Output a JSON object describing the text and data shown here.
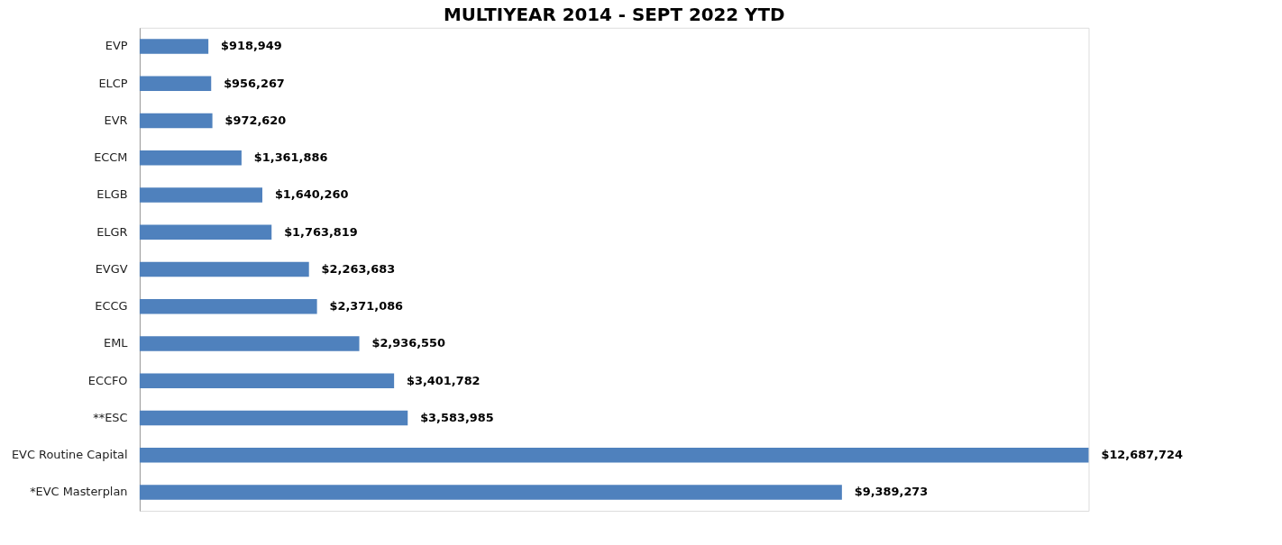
{
  "chart_data": {
    "type": "bar",
    "orientation": "horizontal",
    "title": "MULTIYEAR 2014 - SEPT 2022 YTD",
    "categories": [
      "EVP",
      "ELCP",
      "EVR",
      "ECCM",
      "ELGB",
      "ELGR",
      "EVGV",
      "ECCG",
      "EML",
      "ECCFO",
      "**ESC",
      "EVC Routine Capital",
      "*EVC Masterplan"
    ],
    "values": [
      918949,
      956267,
      972620,
      1361886,
      1640260,
      1763819,
      2263683,
      2371086,
      2936550,
      3401782,
      3583985,
      12687724,
      9389273
    ],
    "value_labels": [
      "$918,949",
      "$956,267",
      "$972,620",
      "$1,361,886",
      "$1,640,260",
      "$1,763,819",
      "$2,263,683",
      "$2,371,086",
      "$2,936,550",
      "$3,401,782",
      "$3,583,985",
      "$12,687,724",
      "$9,389,273"
    ],
    "color": "#4f81bd"
  }
}
